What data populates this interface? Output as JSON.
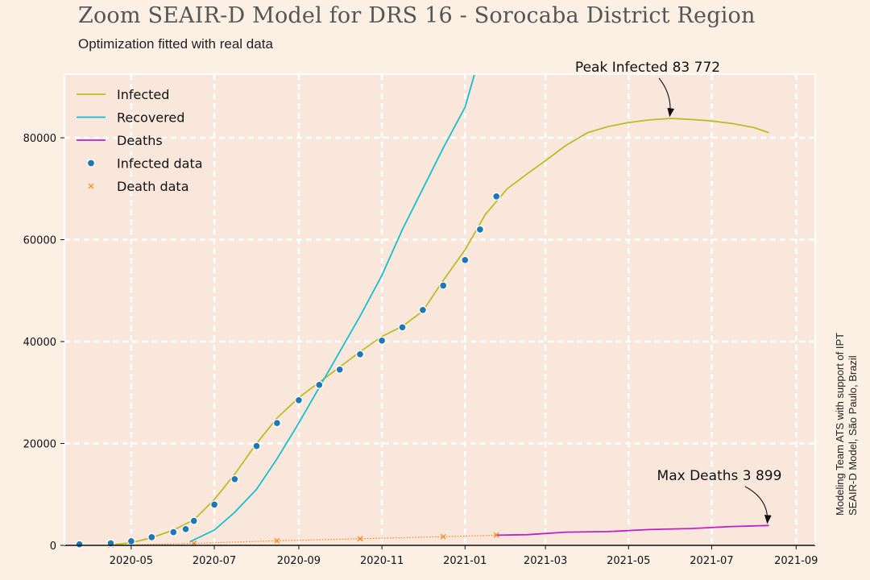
{
  "title": "Zoom SEAIR-D Model for DRS 16 - Sorocaba District Region",
  "subtitle": "Optimization fitted with real data",
  "side_note": {
    "line1": "Modeling Team ATS with support of IPT",
    "line2": "SEAIR-D Model, São Paulo, Brazil"
  },
  "colors": {
    "background": "#fcefe3",
    "plot_area": "#f9e7dc",
    "grid": "#ffffff",
    "infected": "#bcbd22",
    "recovered": "#17becf",
    "deaths": "#c020c8",
    "infected_data": "#1f77b4",
    "death_data": "#ff7f0e"
  },
  "chart_data": {
    "type": "line",
    "xlabel": "",
    "ylabel": "",
    "x_ticks": [
      "2020-05",
      "2020-07",
      "2020-09",
      "2020-11",
      "2021-01",
      "2021-03",
      "2021-05",
      "2021-07",
      "2021-09"
    ],
    "y_ticks": [
      "0",
      "20000",
      "40000",
      "60000",
      "80000"
    ],
    "xlim": [
      "2020-03-13",
      "2021-09-15"
    ],
    "ylim": [
      0,
      92500
    ],
    "grid": true,
    "legend_position": "top-left",
    "series": [
      {
        "name": "Infected",
        "kind": "line",
        "points": [
          [
            "2020-04-16",
            100
          ],
          [
            "2020-05-01",
            500
          ],
          [
            "2020-05-16",
            1500
          ],
          [
            "2020-06-01",
            3000
          ],
          [
            "2020-06-16",
            5000
          ],
          [
            "2020-07-01",
            9000
          ],
          [
            "2020-07-16",
            14000
          ],
          [
            "2020-08-01",
            20000
          ],
          [
            "2020-08-16",
            25000
          ],
          [
            "2020-09-01",
            29000
          ],
          [
            "2020-09-16",
            32000
          ],
          [
            "2020-10-01",
            35000
          ],
          [
            "2020-10-16",
            38000
          ],
          [
            "2020-11-01",
            41000
          ],
          [
            "2020-11-16",
            43000
          ],
          [
            "2020-12-01",
            46000
          ],
          [
            "2020-12-16",
            52000
          ],
          [
            "2021-01-01",
            58000
          ],
          [
            "2021-01-16",
            65000
          ],
          [
            "2021-02-01",
            70000
          ],
          [
            "2021-02-16",
            73000
          ],
          [
            "2021-03-01",
            75500
          ],
          [
            "2021-03-16",
            78500
          ],
          [
            "2021-04-01",
            81000
          ],
          [
            "2021-04-16",
            82200
          ],
          [
            "2021-05-01",
            83000
          ],
          [
            "2021-05-16",
            83500
          ],
          [
            "2021-06-01",
            83800
          ],
          [
            "2021-06-16",
            83600
          ],
          [
            "2021-07-01",
            83300
          ],
          [
            "2021-07-16",
            82800
          ],
          [
            "2021-08-01",
            82000
          ],
          [
            "2021-08-12",
            81000
          ]
        ]
      },
      {
        "name": "Recovered",
        "kind": "line",
        "points": [
          [
            "2020-06-13",
            700
          ],
          [
            "2020-07-01",
            3000
          ],
          [
            "2020-07-16",
            6500
          ],
          [
            "2020-08-01",
            11000
          ],
          [
            "2020-08-16",
            17000
          ],
          [
            "2020-09-01",
            24000
          ],
          [
            "2020-09-16",
            31000
          ],
          [
            "2020-10-01",
            38000
          ],
          [
            "2020-10-16",
            45000
          ],
          [
            "2020-11-01",
            53000
          ],
          [
            "2020-11-16",
            62000
          ],
          [
            "2020-12-01",
            70000
          ],
          [
            "2020-12-16",
            78000
          ],
          [
            "2021-01-01",
            86000
          ],
          [
            "2021-01-08",
            92500
          ]
        ]
      },
      {
        "name": "Deaths",
        "kind": "line",
        "points": [
          [
            "2021-01-24",
            2000
          ],
          [
            "2021-02-16",
            2100
          ],
          [
            "2021-03-16",
            2600
          ],
          [
            "2021-04-16",
            2700
          ],
          [
            "2021-05-16",
            3100
          ],
          [
            "2021-06-16",
            3300
          ],
          [
            "2021-07-16",
            3700
          ],
          [
            "2021-08-12",
            3899
          ]
        ]
      },
      {
        "name": "Infected data",
        "kind": "scatter",
        "points": [
          [
            "2020-03-24",
            200
          ],
          [
            "2020-04-16",
            400
          ],
          [
            "2020-05-01",
            800
          ],
          [
            "2020-05-16",
            1600
          ],
          [
            "2020-06-01",
            2600
          ],
          [
            "2020-06-10",
            3200
          ],
          [
            "2020-06-16",
            4800
          ],
          [
            "2020-07-01",
            8000
          ],
          [
            "2020-07-16",
            13000
          ],
          [
            "2020-08-01",
            19500
          ],
          [
            "2020-08-16",
            24000
          ],
          [
            "2020-09-01",
            28500
          ],
          [
            "2020-09-16",
            31500
          ],
          [
            "2020-10-01",
            34500
          ],
          [
            "2020-10-16",
            37500
          ],
          [
            "2020-11-01",
            40200
          ],
          [
            "2020-11-16",
            42800
          ],
          [
            "2020-12-01",
            46200
          ],
          [
            "2020-12-16",
            51000
          ],
          [
            "2021-01-01",
            56000
          ],
          [
            "2021-01-12",
            62000
          ],
          [
            "2021-01-24",
            68500
          ]
        ]
      },
      {
        "name": "Death data",
        "kind": "scatter",
        "points": [
          [
            "2020-04-16",
            0
          ],
          [
            "2020-06-16",
            400
          ],
          [
            "2020-08-16",
            900
          ],
          [
            "2020-10-16",
            1300
          ],
          [
            "2020-12-16",
            1700
          ],
          [
            "2021-01-24",
            2000
          ]
        ]
      }
    ],
    "annotations": [
      {
        "text": "Peak Infected 83 772",
        "x": "2021-06-02",
        "y": 83772
      },
      {
        "text": "Max Deaths 3 899",
        "x": "2021-08-12",
        "y": 3899
      }
    ]
  }
}
